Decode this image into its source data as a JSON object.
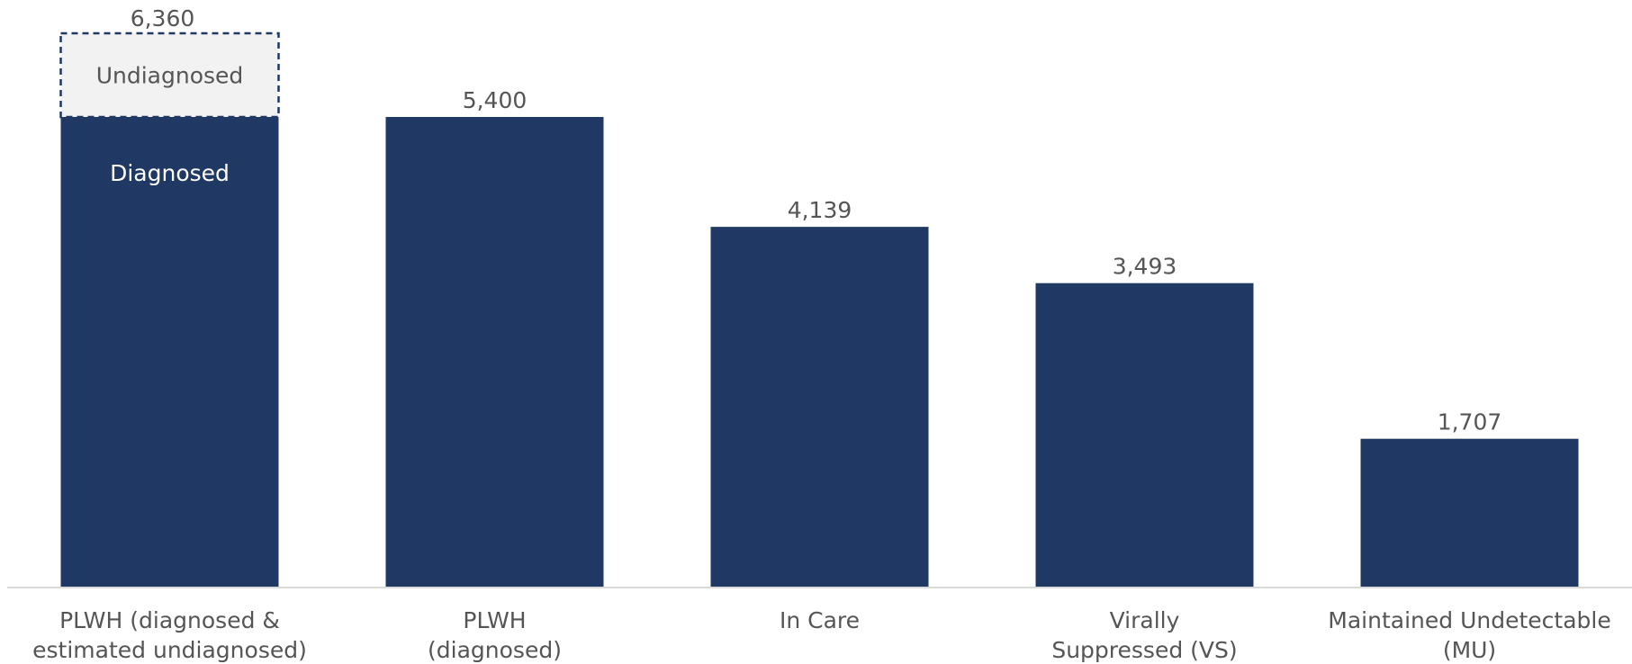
{
  "chart_data": {
    "type": "bar",
    "title": "",
    "xlabel": "",
    "ylabel": "",
    "ylim": [
      0,
      6600
    ],
    "grid": false,
    "categories": [
      [
        "PLWH (diagnosed &",
        "estimated undiagnosed)"
      ],
      [
        "PLWH",
        "(diagnosed)"
      ],
      [
        "In Care"
      ],
      [
        "Virally",
        "Suppressed (VS)"
      ],
      [
        "Maintained Undetectable",
        "(MU)"
      ]
    ],
    "values": [
      6360,
      5400,
      4139,
      3493,
      1707
    ],
    "value_labels": [
      "6,360",
      "5,400",
      "4,139",
      "3,493",
      "1,707"
    ],
    "first_bar_segments": [
      {
        "name": "Diagnosed",
        "value": 5400
      },
      {
        "name": "Undiagnosed",
        "value": 960
      }
    ],
    "colors": {
      "bar": "#203864",
      "undiagnosed_fill": "#f2f2f2",
      "undiagnosed_border": "#203864",
      "axis": "#d9d9d9",
      "text": "#555555"
    }
  }
}
